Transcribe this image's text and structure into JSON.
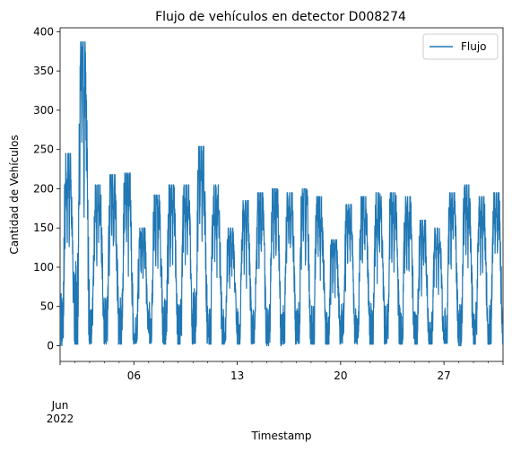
{
  "chart_data": {
    "type": "line",
    "title": "Flujo de vehículos en detector D008274",
    "xlabel": "Timestamp",
    "ylabel": "Cantidad de Vehículos",
    "x_range": [
      "2022-06-01",
      "2022-07-01"
    ],
    "ylim": [
      -20,
      405
    ],
    "y_ticks": [
      0,
      50,
      100,
      150,
      200,
      250,
      300,
      350,
      400
    ],
    "x_major_ticks": [
      {
        "date": "2022-06-01",
        "label": "Jun\n2022"
      },
      {
        "date": "2022-06-06",
        "label": "06"
      },
      {
        "date": "2022-06-13",
        "label": "13"
      },
      {
        "date": "2022-06-20",
        "label": "20"
      },
      {
        "date": "2022-06-27",
        "label": "27"
      }
    ],
    "x_tick_label_main": "Jun",
    "x_tick_label_year": "2022",
    "grid": false,
    "legend_position": "upper-right",
    "series": [
      {
        "name": "Flujo",
        "color": "#1f77b4",
        "sampling": "daily envelope (reconstructed from high-frequency signal)",
        "daily": [
          {
            "date": "2022-06-01",
            "min": 0,
            "max": 245
          },
          {
            "date": "2022-06-02",
            "min": 2,
            "max": 387
          },
          {
            "date": "2022-06-03",
            "min": 3,
            "max": 205
          },
          {
            "date": "2022-06-04",
            "min": 2,
            "max": 218
          },
          {
            "date": "2022-06-05",
            "min": 2,
            "max": 220
          },
          {
            "date": "2022-06-06",
            "min": 3,
            "max": 150
          },
          {
            "date": "2022-06-07",
            "min": 3,
            "max": 192
          },
          {
            "date": "2022-06-08",
            "min": 2,
            "max": 205
          },
          {
            "date": "2022-06-09",
            "min": 2,
            "max": 205
          },
          {
            "date": "2022-06-10",
            "min": 3,
            "max": 254
          },
          {
            "date": "2022-06-11",
            "min": 2,
            "max": 205
          },
          {
            "date": "2022-06-12",
            "min": 2,
            "max": 150
          },
          {
            "date": "2022-06-13",
            "min": 2,
            "max": 185
          },
          {
            "date": "2022-06-14",
            "min": 3,
            "max": 195
          },
          {
            "date": "2022-06-15",
            "min": 0,
            "max": 200
          },
          {
            "date": "2022-06-16",
            "min": 2,
            "max": 195
          },
          {
            "date": "2022-06-17",
            "min": 3,
            "max": 200
          },
          {
            "date": "2022-06-18",
            "min": 2,
            "max": 190
          },
          {
            "date": "2022-06-19",
            "min": 2,
            "max": 135
          },
          {
            "date": "2022-06-20",
            "min": 3,
            "max": 180
          },
          {
            "date": "2022-06-21",
            "min": 2,
            "max": 190
          },
          {
            "date": "2022-06-22",
            "min": 2,
            "max": 195
          },
          {
            "date": "2022-06-23",
            "min": 3,
            "max": 195
          },
          {
            "date": "2022-06-24",
            "min": 2,
            "max": 190
          },
          {
            "date": "2022-06-25",
            "min": 2,
            "max": 160
          },
          {
            "date": "2022-06-26",
            "min": 2,
            "max": 150
          },
          {
            "date": "2022-06-27",
            "min": 3,
            "max": 195
          },
          {
            "date": "2022-06-28",
            "min": 0,
            "max": 205
          },
          {
            "date": "2022-06-29",
            "min": 2,
            "max": 190
          },
          {
            "date": "2022-06-30",
            "min": 2,
            "max": 195
          }
        ]
      }
    ]
  }
}
